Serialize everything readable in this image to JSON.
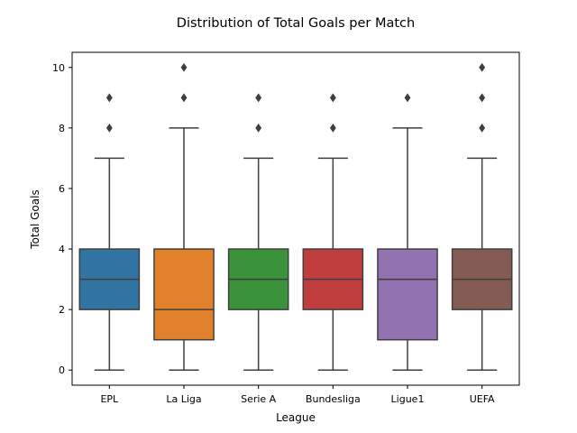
{
  "chart_data": {
    "type": "box",
    "title": "Distribution of Total Goals per Match",
    "xlabel": "League",
    "ylabel": "Total Goals",
    "ylim": [
      -0.5,
      10.5
    ],
    "yticks": [
      0,
      2,
      4,
      6,
      8,
      10
    ],
    "grid": false,
    "legend": "none",
    "categories": [
      "EPL",
      "La Liga",
      "Serie A",
      "Bundesliga",
      "Ligue1",
      "UEFA"
    ],
    "colors": [
      "#3274a1",
      "#e1812c",
      "#3a923a",
      "#c03d3e",
      "#9372b2",
      "#845b53"
    ],
    "boxes": [
      {
        "whisker_low": 0,
        "q1": 2,
        "median": 3,
        "q3": 4,
        "whisker_high": 7,
        "outliers": [
          8,
          9
        ]
      },
      {
        "whisker_low": 0,
        "q1": 1,
        "median": 2,
        "q3": 4,
        "whisker_high": 8,
        "outliers": [
          9,
          10
        ]
      },
      {
        "whisker_low": 0,
        "q1": 2,
        "median": 3,
        "q3": 4,
        "whisker_high": 7,
        "outliers": [
          8,
          9
        ]
      },
      {
        "whisker_low": 0,
        "q1": 2,
        "median": 3,
        "q3": 4,
        "whisker_high": 7,
        "outliers": [
          8,
          9
        ]
      },
      {
        "whisker_low": 0,
        "q1": 1,
        "median": 3,
        "q3": 4,
        "whisker_high": 8,
        "outliers": [
          9
        ]
      },
      {
        "whisker_low": 0,
        "q1": 2,
        "median": 3,
        "q3": 4,
        "whisker_high": 7,
        "outliers": [
          8,
          9,
          10
        ]
      }
    ]
  }
}
